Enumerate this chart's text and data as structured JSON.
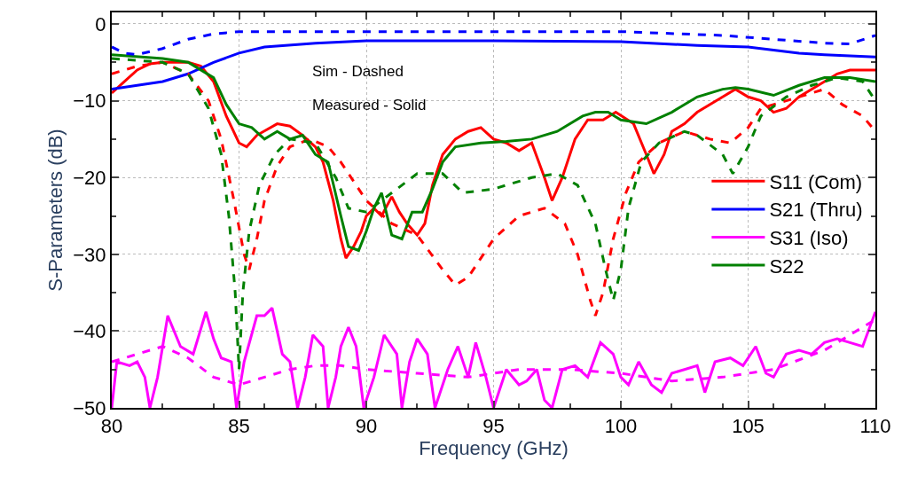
{
  "chart_data": {
    "type": "line",
    "xlabel": "Frequency (GHz)",
    "ylabel": "S-Parameters (dB)",
    "xlim": [
      80,
      110
    ],
    "xticks": [
      80,
      85,
      90,
      95,
      100,
      105,
      110
    ],
    "ylim": [
      -50,
      1.5
    ],
    "yticks": [
      -50,
      -40,
      -30,
      -20,
      -10,
      0
    ],
    "grid": true,
    "legend": "right",
    "marker": "none",
    "annotations": [
      "Sim - Dashed",
      "Measured - Solid"
    ],
    "series": [
      {
        "name": "S11 (Com)",
        "color": "#ff0000",
        "line_style": "solid",
        "x": [
          80,
          80.5,
          81,
          81.5,
          82,
          83,
          83.5,
          84,
          84.5,
          85,
          85.3,
          85.7,
          86.5,
          87,
          87.5,
          88,
          88.3,
          88.7,
          89,
          89.2,
          89.5,
          89.8,
          90,
          90.3,
          90.6,
          91,
          91.3,
          91.6,
          92,
          92.3,
          92.6,
          93,
          93.5,
          94,
          94.5,
          95,
          95.5,
          96,
          96.5,
          97,
          97.3,
          97.7,
          98.2,
          98.7,
          99.3,
          99.8,
          100.5,
          101,
          101.3,
          101.7,
          102,
          102.5,
          103,
          104,
          104.5,
          105,
          105.5,
          106,
          106.5,
          107,
          108,
          108.5,
          109,
          110
        ],
        "values": [
          -9,
          -7.5,
          -6,
          -5.2,
          -5,
          -5,
          -5.5,
          -7.5,
          -12,
          -15.5,
          -16,
          -14.5,
          -13,
          -13.3,
          -14.5,
          -16,
          -18,
          -23,
          -28,
          -30.5,
          -29,
          -27,
          -25,
          -24,
          -25,
          -22.5,
          -24.5,
          -26,
          -27.5,
          -26,
          -21,
          -17,
          -15,
          -14,
          -13.5,
          -15,
          -15.5,
          -16.5,
          -15.5,
          -20,
          -23,
          -20,
          -15,
          -12.5,
          -12.5,
          -11.5,
          -13,
          -17,
          -19.5,
          -17,
          -14,
          -13,
          -11.5,
          -9.5,
          -8.5,
          -9.5,
          -10,
          -11.5,
          -11,
          -9.5,
          -7.5,
          -6.5,
          -6,
          -6
        ]
      },
      {
        "name": "S21 (Thru)",
        "color": "#0000ff",
        "line_style": "solid",
        "x": [
          80,
          81,
          82,
          83,
          84,
          85,
          86,
          88,
          90,
          95,
          100,
          103,
          105,
          107,
          108,
          110
        ],
        "values": [
          -8.5,
          -8,
          -7.5,
          -6.5,
          -5,
          -3.8,
          -3,
          -2.5,
          -2.2,
          -2.2,
          -2.3,
          -2.8,
          -3,
          -3.8,
          -4,
          -4.3
        ]
      },
      {
        "name": "S31 (Iso)",
        "color": "#ff00ff",
        "line_style": "solid",
        "x": [
          80,
          80.2,
          80.7,
          81,
          81.3,
          81.5,
          81.8,
          82.2,
          82.7,
          83.2,
          83.7,
          84,
          84.3,
          84.7,
          84.9,
          85.2,
          85.7,
          86,
          86.3,
          86.7,
          87,
          87.3,
          87.6,
          87.9,
          88.3,
          88.5,
          88.8,
          89,
          89.3,
          89.6,
          89.9,
          90.3,
          90.7,
          91.2,
          91.4,
          91.7,
          92,
          92.4,
          92.7,
          93.2,
          93.6,
          94,
          94.3,
          94.7,
          95,
          95.2,
          95.5,
          96,
          96.3,
          96.7,
          97,
          97.3,
          97.7,
          98.2,
          98.7,
          99.2,
          99.7,
          100,
          100.3,
          100.7,
          101.2,
          101.6,
          102,
          102.5,
          103,
          103.3,
          103.7,
          104.3,
          104.8,
          105.3,
          105.7,
          106,
          106.5,
          107,
          107.5,
          108,
          108.5,
          109,
          109.5,
          110
        ],
        "values": [
          -50,
          -44,
          -44.5,
          -44,
          -46,
          -50,
          -46,
          -38,
          -42,
          -43,
          -37.5,
          -41,
          -43.5,
          -44,
          -50,
          -44,
          -38,
          -38,
          -37,
          -43,
          -44,
          -50,
          -46,
          -40.5,
          -42,
          -50,
          -46,
          -42,
          -39.5,
          -42,
          -50,
          -46,
          -40.5,
          -43,
          -50,
          -44,
          -41,
          -43,
          -50,
          -45,
          -42,
          -46,
          -41.5,
          -46,
          -50,
          -48,
          -45,
          -47,
          -46.5,
          -45,
          -49,
          -50,
          -45,
          -44.5,
          -46,
          -41.5,
          -43,
          -46,
          -47,
          -44,
          -47,
          -48,
          -45.5,
          -45,
          -44.5,
          -48,
          -44,
          -43.5,
          -44.5,
          -42,
          -45.5,
          -46,
          -43,
          -42.5,
          -43,
          -41.5,
          -41,
          -41.5,
          -42,
          -37.5
        ]
      },
      {
        "name": "S22",
        "color": "#008000",
        "line_style": "solid",
        "x": [
          80,
          82,
          83,
          84,
          84.5,
          85,
          85.5,
          86,
          86.5,
          87,
          87.5,
          88,
          88.5,
          89,
          89.3,
          89.7,
          90,
          90.3,
          90.6,
          91,
          91.4,
          91.8,
          92.2,
          92.6,
          93,
          93.5,
          94.5,
          95.5,
          96.5,
          97.5,
          98.5,
          99,
          99.5,
          100,
          101,
          102,
          103,
          104,
          104.5,
          105,
          106,
          107,
          108,
          109,
          110
        ],
        "values": [
          -4,
          -4.5,
          -5,
          -7,
          -10.5,
          -13,
          -13.5,
          -15,
          -14,
          -15,
          -14.5,
          -17,
          -18,
          -25,
          -29,
          -29.5,
          -27,
          -24,
          -22,
          -27.5,
          -28,
          -24.5,
          -24.5,
          -21.5,
          -18,
          -16,
          -15.5,
          -15.3,
          -15,
          -14,
          -12,
          -11.5,
          -11.5,
          -12.5,
          -13,
          -11.5,
          -9.5,
          -8.5,
          -8.3,
          -8.5,
          -9.3,
          -8,
          -7,
          -7,
          -7.5
        ]
      },
      {
        "color": "#ff0000",
        "line_style": "dashed",
        "x": [
          80,
          81,
          82,
          83,
          83.8,
          84.3,
          84.8,
          85.2,
          85.4,
          85.7,
          86,
          86.5,
          87,
          87.8,
          88.5,
          89,
          89.5,
          90,
          91,
          92,
          93,
          93.5,
          94,
          95,
          96,
          97,
          97.8,
          98.3,
          98.8,
          99,
          99.3,
          99.7,
          100.2,
          100.7,
          101.5,
          102.5,
          103.5,
          104.3,
          105,
          105.5,
          106.5,
          107.5,
          108,
          108.7,
          109.5,
          110
        ],
        "values": [
          -6.5,
          -5.5,
          -5,
          -6.5,
          -10,
          -15,
          -23,
          -30,
          -32,
          -28,
          -23,
          -18.5,
          -16,
          -15,
          -16,
          -18,
          -20.5,
          -23,
          -26,
          -27.5,
          -32,
          -34,
          -33,
          -28,
          -25,
          -24,
          -26,
          -30,
          -36,
          -38,
          -35,
          -28,
          -22,
          -18,
          -15.5,
          -14,
          -15,
          -15.5,
          -13.5,
          -11,
          -10,
          -9,
          -8.5,
          -10.5,
          -12,
          -14
        ]
      },
      {
        "color": "#0000ff",
        "line_style": "dashed",
        "x": [
          80,
          80.5,
          81,
          82,
          83,
          84,
          85,
          90,
          95,
          100,
          104,
          106,
          108,
          109,
          110
        ],
        "values": [
          -3,
          -3.8,
          -4,
          -3.2,
          -2,
          -1.3,
          -1,
          -1,
          -1,
          -1,
          -1.5,
          -2,
          -2.5,
          -2.6,
          -1.5
        ]
      },
      {
        "color": "#ff00ff",
        "line_style": "dashed",
        "x": [
          80,
          81,
          82,
          83,
          84,
          85,
          86,
          87,
          88,
          89,
          90,
          92,
          94,
          95,
          96,
          98,
          100,
          102,
          104,
          106,
          108,
          110
        ],
        "values": [
          -44,
          -43,
          -42,
          -43.5,
          -46,
          -47,
          -46,
          -45,
          -44.5,
          -44.5,
          -45,
          -45.5,
          -46,
          -45.5,
          -45,
          -45,
          -45.5,
          -46.5,
          -46,
          -45,
          -42.5,
          -38.5
        ]
      },
      {
        "color": "#008000",
        "line_style": "dashed",
        "x": [
          80,
          82,
          83,
          83.8,
          84.3,
          84.6,
          84.85,
          85,
          85.15,
          85.4,
          85.8,
          86.4,
          87,
          88,
          88.8,
          89.3,
          90,
          91,
          92,
          93,
          93.8,
          95,
          96.5,
          97.5,
          98.3,
          99,
          99.4,
          99.7,
          100,
          100.3,
          100.8,
          101.5,
          102.5,
          103,
          104,
          104.4,
          105,
          105.5,
          106.5,
          107.5,
          108.5,
          109.5,
          110
        ],
        "values": [
          -4.5,
          -5,
          -6.5,
          -11,
          -17,
          -25,
          -35,
          -45,
          -35,
          -27,
          -21,
          -17,
          -15,
          -15.5,
          -20,
          -24,
          -24.5,
          -22,
          -19.5,
          -19.5,
          -22,
          -21.5,
          -20,
          -19.5,
          -21,
          -26,
          -32,
          -36,
          -32,
          -24,
          -18,
          -15.5,
          -14,
          -14.5,
          -17,
          -19.5,
          -16,
          -12,
          -9.5,
          -8,
          -7,
          -7.5,
          -10
        ]
      }
    ]
  }
}
